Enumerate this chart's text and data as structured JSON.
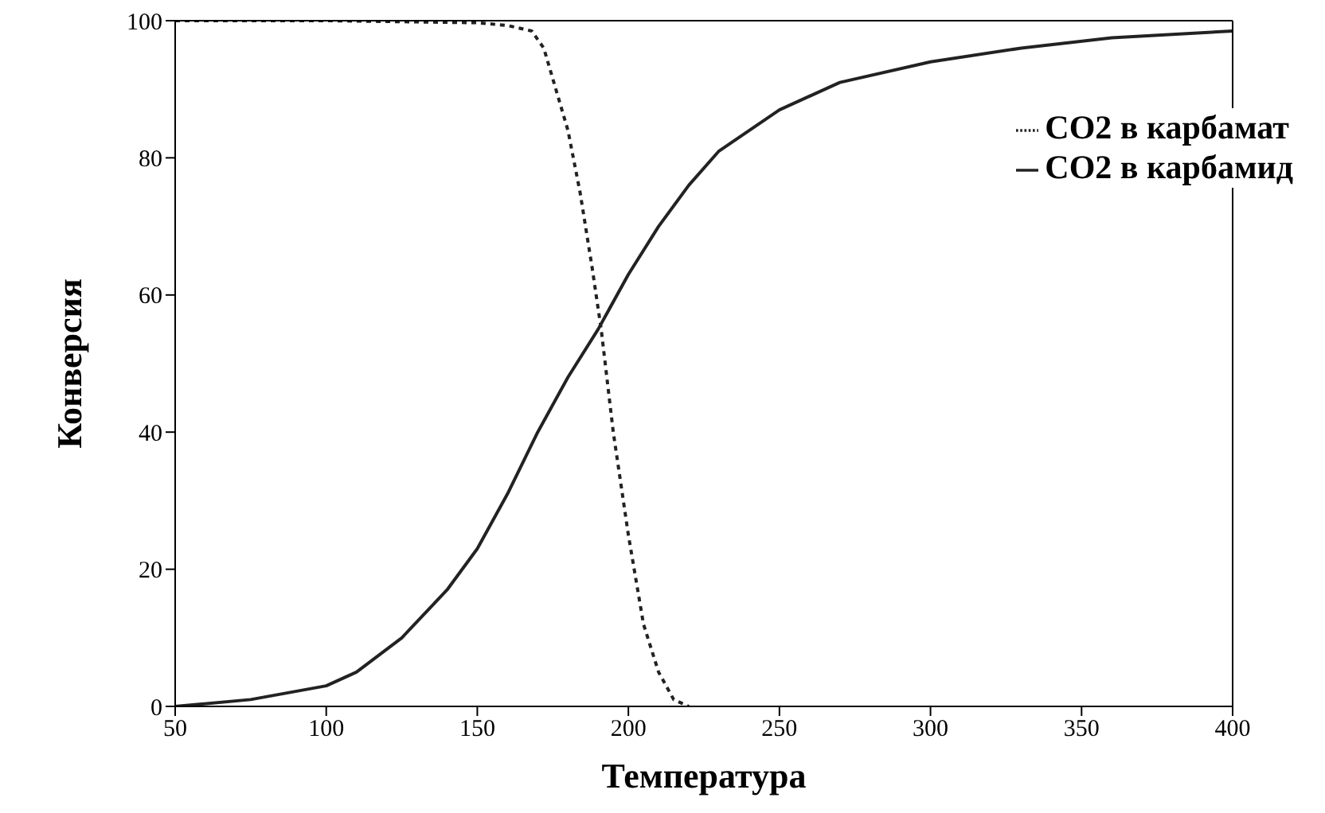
{
  "chart_data": {
    "type": "line",
    "xlabel": "Температура",
    "ylabel": "Конверсия",
    "xlim": [
      50,
      400
    ],
    "xticks": [
      50,
      100,
      150,
      200,
      250,
      300,
      350,
      400
    ],
    "ylim": [
      0,
      100
    ],
    "yticks": [
      0,
      20,
      40,
      60,
      80,
      100
    ],
    "grid": false,
    "legend": "top right",
    "marker": "none",
    "series": [
      {
        "name": "CO2 в карбамат",
        "color": "#222222",
        "line_style": "dotted",
        "x": [
          50,
          100,
          150,
          160,
          168,
          172,
          176,
          180,
          184,
          188,
          191,
          195,
          200,
          205,
          210,
          215,
          220
        ],
        "values": [
          100,
          100,
          99.7,
          99.3,
          98.5,
          96,
          90,
          84,
          75,
          64,
          55,
          40,
          25,
          12,
          5,
          1,
          0
        ]
      },
      {
        "name": "CO2 в карбамид",
        "color": "#222222",
        "line_style": "solid",
        "x": [
          50,
          75,
          100,
          110,
          125,
          140,
          150,
          160,
          170,
          180,
          190,
          200,
          210,
          220,
          230,
          250,
          270,
          300,
          330,
          360,
          400
        ],
        "values": [
          0,
          1,
          3,
          5,
          10,
          17,
          23,
          31,
          40,
          48,
          55,
          63,
          70,
          76,
          81,
          87,
          91,
          94,
          96,
          97.5,
          98.5
        ]
      }
    ]
  }
}
